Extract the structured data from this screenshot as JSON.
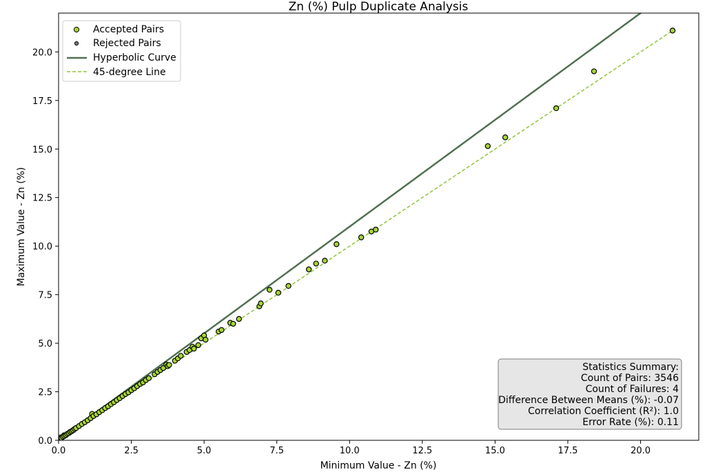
{
  "chart_data": {
    "type": "scatter",
    "title": "Zn (%) Pulp Duplicate Analysis",
    "xlabel": "Minimum Value - Zn (%)",
    "ylabel": "Maximum Value - Zn (%)",
    "xlim": [
      0,
      22
    ],
    "ylim": [
      0,
      22
    ],
    "xticks": [
      0,
      2.5,
      5,
      7.5,
      10,
      12.5,
      15,
      17.5,
      20
    ],
    "yticks": [
      0,
      2.5,
      5,
      7.5,
      10,
      12.5,
      15,
      17.5,
      20
    ],
    "xtick_labels": [
      "0.0",
      "2.5",
      "5.0",
      "7.5",
      "10.0",
      "12.5",
      "15.0",
      "17.5",
      "20.0"
    ],
    "ytick_labels": [
      "0.0",
      "2.5",
      "5.0",
      "7.5",
      "10.0",
      "12.5",
      "15.0",
      "17.5",
      "20.0"
    ],
    "grid": false,
    "legend_position": "top-left",
    "series": [
      {
        "name": "Accepted Pairs",
        "kind": "scatter",
        "color": "#a6d436",
        "edge_color": "#000000",
        "points": [
          [
            0.05,
            0.07
          ],
          [
            0.1,
            0.12
          ],
          [
            0.15,
            0.18
          ],
          [
            0.2,
            0.22
          ],
          [
            0.25,
            0.27
          ],
          [
            0.3,
            0.33
          ],
          [
            0.35,
            0.37
          ],
          [
            0.4,
            0.43
          ],
          [
            0.45,
            0.47
          ],
          [
            0.5,
            0.52
          ],
          [
            0.55,
            0.58
          ],
          [
            0.6,
            0.63
          ],
          [
            0.7,
            0.73
          ],
          [
            0.8,
            0.84
          ],
          [
            0.9,
            0.93
          ],
          [
            1.0,
            1.03
          ],
          [
            1.1,
            1.14
          ],
          [
            1.15,
            1.36
          ],
          [
            1.2,
            1.25
          ],
          [
            1.3,
            1.34
          ],
          [
            1.4,
            1.45
          ],
          [
            1.5,
            1.55
          ],
          [
            1.6,
            1.66
          ],
          [
            1.7,
            1.75
          ],
          [
            1.8,
            1.86
          ],
          [
            1.9,
            1.96
          ],
          [
            2.0,
            2.07
          ],
          [
            2.1,
            2.17
          ],
          [
            2.2,
            2.28
          ],
          [
            2.3,
            2.38
          ],
          [
            2.4,
            2.47
          ],
          [
            2.5,
            2.58
          ],
          [
            2.6,
            2.68
          ],
          [
            2.7,
            2.79
          ],
          [
            2.8,
            2.9
          ],
          [
            2.9,
            2.98
          ],
          [
            3.0,
            3.1
          ],
          [
            3.1,
            3.2
          ],
          [
            3.3,
            3.4
          ],
          [
            3.4,
            3.52
          ],
          [
            3.5,
            3.62
          ],
          [
            3.6,
            3.72
          ],
          [
            3.7,
            3.9
          ],
          [
            3.75,
            3.82
          ],
          [
            3.8,
            3.88
          ],
          [
            4.0,
            4.1
          ],
          [
            4.1,
            4.22
          ],
          [
            4.2,
            4.35
          ],
          [
            4.4,
            4.55
          ],
          [
            4.5,
            4.65
          ],
          [
            4.6,
            4.82
          ],
          [
            4.65,
            4.72
          ],
          [
            4.8,
            4.9
          ],
          [
            4.9,
            5.25
          ],
          [
            5.0,
            5.4
          ],
          [
            5.05,
            5.18
          ],
          [
            5.5,
            5.6
          ],
          [
            5.6,
            5.68
          ],
          [
            5.9,
            6.05
          ],
          [
            6.0,
            6.0
          ],
          [
            6.2,
            6.25
          ],
          [
            6.9,
            6.9
          ],
          [
            6.95,
            7.05
          ],
          [
            7.25,
            7.75
          ],
          [
            7.55,
            7.6
          ],
          [
            7.9,
            7.95
          ],
          [
            8.6,
            8.8
          ],
          [
            8.85,
            9.1
          ],
          [
            9.15,
            9.25
          ],
          [
            9.55,
            10.1
          ],
          [
            10.4,
            10.45
          ],
          [
            10.75,
            10.75
          ],
          [
            10.9,
            10.85
          ],
          [
            14.75,
            15.15
          ],
          [
            15.35,
            15.6
          ],
          [
            17.1,
            17.1
          ],
          [
            18.4,
            19.0
          ],
          [
            21.1,
            21.1
          ]
        ]
      },
      {
        "name": "Rejected Pairs",
        "kind": "scatter",
        "color": "#777777",
        "edge_color": "#000000",
        "points": [
          [
            0.02,
            0.05
          ],
          [
            0.08,
            0.15
          ],
          [
            0.12,
            0.2
          ],
          [
            0.18,
            0.3
          ]
        ]
      },
      {
        "name": "Hyperbolic Curve",
        "kind": "line",
        "color": "#4f7050",
        "equation": "y = sqrt(0.06 + 1.21 x^2)"
      },
      {
        "name": "45-degree Line",
        "kind": "line",
        "color": "#8fc43a",
        "dashed": true,
        "points": [
          [
            0,
            0
          ],
          [
            21.1,
            21.1
          ]
        ]
      }
    ],
    "stats": {
      "title": "Statistics Summary:",
      "lines": [
        "Count of Pairs: 3546",
        "Count of Failures: 4",
        "Difference Between Means (%): -0.07",
        "Correlation Coefficient (R²): 1.0",
        "Error Rate (%): 0.11"
      ]
    }
  }
}
